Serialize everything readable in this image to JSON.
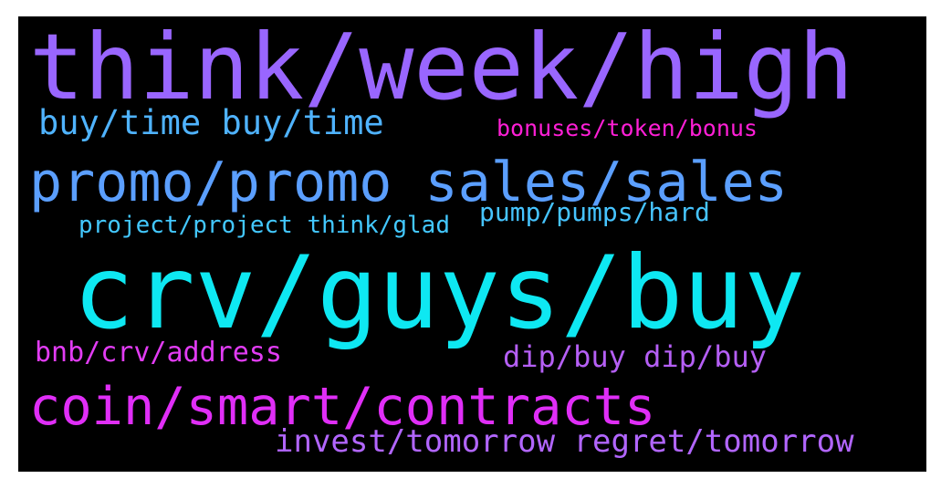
{
  "words": [
    {
      "text": "think/week/high",
      "color": "#9966ff"
    },
    {
      "text": "buy/time buy/time",
      "color": "#4fb3ff"
    },
    {
      "text": "bonuses/token/bonus",
      "color": "#ff1fd6"
    },
    {
      "text": "promo/promo sales/sales",
      "color": "#5b9fff"
    },
    {
      "text": "project/project think/glad",
      "color": "#43c8ff"
    },
    {
      "text": "pump/pumps/hard",
      "color": "#46c4ff"
    },
    {
      "text": "crv/guys/buy",
      "color": "#0ee8f2"
    },
    {
      "text": "bnb/crv/address",
      "color": "#e23cf4"
    },
    {
      "text": "dip/buy dip/buy",
      "color": "#b55ff5"
    },
    {
      "text": "coin/smart/contracts",
      "color": "#e02ef7"
    },
    {
      "text": "invest/tomorrow regret/tomorrow",
      "color": "#b266ff"
    }
  ],
  "background": "#000000"
}
